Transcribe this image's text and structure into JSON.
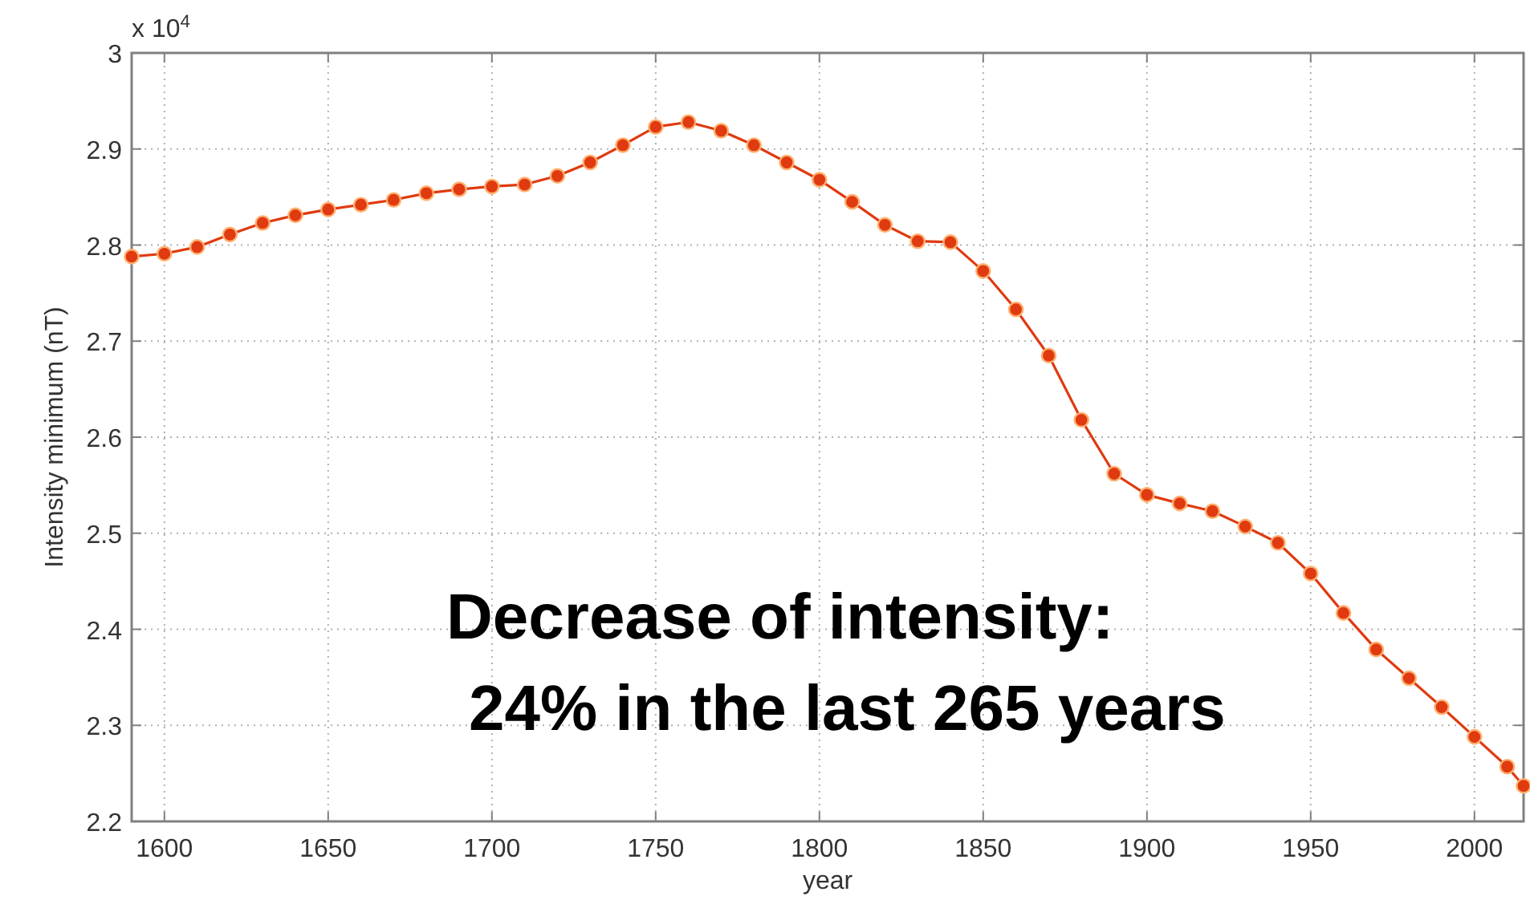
{
  "chart_data": {
    "type": "line",
    "xlabel": "year",
    "ylabel": "Intensity minimum (nT)",
    "x": [
      1590,
      1600,
      1610,
      1620,
      1630,
      1640,
      1650,
      1660,
      1670,
      1680,
      1690,
      1700,
      1710,
      1720,
      1730,
      1740,
      1750,
      1760,
      1770,
      1780,
      1790,
      1800,
      1810,
      1820,
      1830,
      1840,
      1850,
      1860,
      1870,
      1880,
      1890,
      1900,
      1910,
      1920,
      1930,
      1940,
      1950,
      1960,
      1970,
      1980,
      1990,
      2000,
      2010,
      2015
    ],
    "series": [
      {
        "color": "#e03a10",
        "values": [
          2.788,
          2.791,
          2.798,
          2.811,
          2.823,
          2.831,
          2.837,
          2.842,
          2.847,
          2.854,
          2.858,
          2.861,
          2.863,
          2.872,
          2.886,
          2.904,
          2.923,
          2.928,
          2.919,
          2.904,
          2.886,
          2.868,
          2.845,
          2.821,
          2.804,
          2.803,
          2.773,
          2.733,
          2.685,
          2.618,
          2.562,
          2.54,
          2.531,
          2.523,
          2.507,
          2.49,
          2.458,
          2.417,
          2.379,
          2.349,
          2.319,
          2.288,
          2.257,
          2.237
        ]
      }
    ],
    "xlim": [
      1590,
      2015
    ],
    "xticks": [
      1600,
      1650,
      1700,
      1750,
      1800,
      1850,
      1900,
      1950,
      2000
    ],
    "ylim": [
      2.2,
      3
    ],
    "yticks": [
      2.2,
      2.3,
      2.4,
      2.5,
      2.6,
      2.7,
      2.8,
      2.9,
      3
    ],
    "grid": true,
    "marker": "circle",
    "line_style": "solid",
    "annotations": [
      "x 10$^{4}$",
      "Decrease of intensity:",
      "24% in the last 265 years"
    ]
  }
}
